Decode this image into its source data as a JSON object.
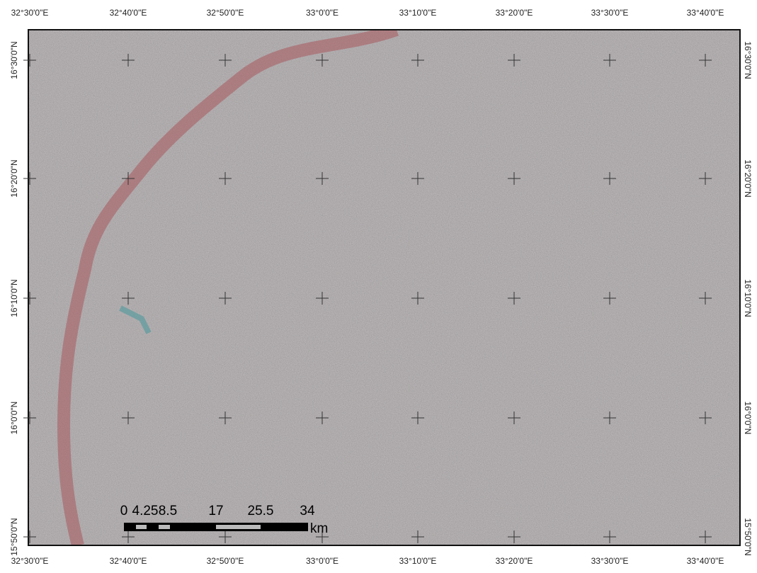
{
  "map": {
    "top_labels": [
      "32°30'0\"E",
      "32°40'0\"E",
      "32°50'0\"E",
      "33°0'0\"E",
      "33°10'0\"E",
      "33°20'0\"E",
      "33°30'0\"E",
      "33°40'0\"E"
    ],
    "bottom_labels": [
      "32°30'0\"E",
      "32°40'0\"E",
      "32°50'0\"E",
      "33°0'0\"E",
      "33°10'0\"E",
      "33°20'0\"E",
      "33°30'0\"E",
      "33°40'0\"E"
    ],
    "left_labels": [
      "16°30'0\"N",
      "16°20'0\"N",
      "16°10'0\"N",
      "16°0'0\"N",
      "15°50'0\"N"
    ],
    "right_labels": [
      "16°30'0\"N",
      "16°20'0\"N",
      "16°10'0\"N",
      "16°0'0\"N",
      "15°50'0\"N"
    ],
    "scale_bar": {
      "labels": [
        "0",
        "4.25",
        "8.5",
        "17",
        "25.5",
        "34"
      ],
      "unit": "km"
    }
  }
}
